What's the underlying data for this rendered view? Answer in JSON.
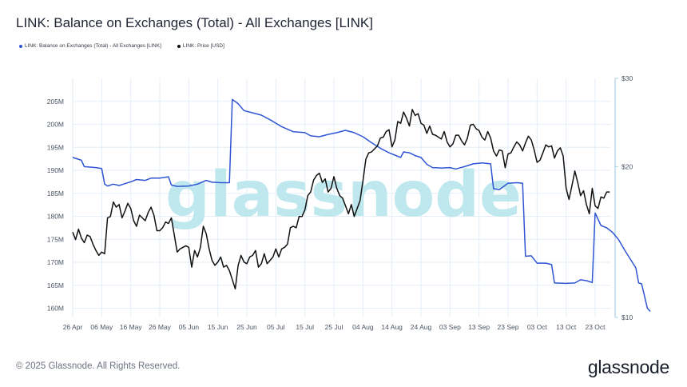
{
  "header": {
    "title": "LINK: Balance on Exchanges (Total) - All Exchanges [LINK]"
  },
  "legend": [
    {
      "label": "LINK: Balance on Exchanges (Total) - All Exchanges [LINK]",
      "color": "#2f55d4"
    },
    {
      "label": "LINK: Price [USD]",
      "color": "#111111"
    }
  ],
  "watermark": "glassnode",
  "footer": {
    "copyright": "© 2025 Glassnode. All Rights Reserved.",
    "logo": "glassnode"
  },
  "colors": {
    "balance": "#2f55d4",
    "price": "#111111",
    "grid": "#e3eef8",
    "right_axis": "#a9cfe8",
    "watermark": "#bfe8ee"
  },
  "chart_data": {
    "type": "line",
    "title": "LINK: Balance on Exchanges (Total) - All Exchanges [LINK]",
    "x_ticks": [
      "26 Apr",
      "06 May",
      "16 May",
      "26 May",
      "05 Jun",
      "15 Jun",
      "25 Jun",
      "05 Jul",
      "15 Jul",
      "25 Jul",
      "04 Aug",
      "14 Aug",
      "24 Aug",
      "03 Sep",
      "13 Sep",
      "23 Sep",
      "03 Oct",
      "13 Oct",
      "23 Oct"
    ],
    "x_tick_days": [
      0,
      10,
      20,
      30,
      40,
      50,
      60,
      70,
      80,
      90,
      100,
      110,
      120,
      130,
      140,
      150,
      160,
      170,
      180
    ],
    "y_left": {
      "ticks": [
        160,
        165,
        170,
        175,
        180,
        185,
        190,
        195,
        200,
        205
      ],
      "tick_labels": [
        "160M",
        "165M",
        "170M",
        "175M",
        "180M",
        "185M",
        "190M",
        "195M",
        "200M",
        "205M"
      ],
      "range": [
        158,
        210
      ]
    },
    "y_right": {
      "scale": "log",
      "ticks": [
        10,
        20,
        30
      ],
      "tick_labels": [
        "$10",
        "$20",
        "$30"
      ],
      "range": [
        10,
        30
      ]
    },
    "grid": true,
    "legend_position": "top-left",
    "series": [
      {
        "name": "LINK: Balance on Exchanges (Total) - All Exchanges [LINK]",
        "axis": "left",
        "points": [
          [
            0,
            192.8
          ],
          [
            3,
            192.2
          ],
          [
            4,
            190.8
          ],
          [
            8,
            190.6
          ],
          [
            10,
            190.4
          ],
          [
            11,
            187
          ],
          [
            12,
            186.6
          ],
          [
            14,
            187
          ],
          [
            16,
            186.7
          ],
          [
            18,
            187.1
          ],
          [
            20,
            187.5
          ],
          [
            22,
            188
          ],
          [
            25,
            187.8
          ],
          [
            27,
            188.3
          ],
          [
            30,
            188.3
          ],
          [
            33,
            188.6
          ],
          [
            34,
            186.8
          ],
          [
            36,
            186.5
          ],
          [
            40,
            186.6
          ],
          [
            43,
            187
          ],
          [
            46,
            187.8
          ],
          [
            48,
            187.4
          ],
          [
            51,
            187.3
          ],
          [
            54,
            187.3
          ],
          [
            55,
            205.4
          ],
          [
            57,
            204.5
          ],
          [
            59,
            203
          ],
          [
            62,
            202.5
          ],
          [
            65,
            202
          ],
          [
            68,
            201
          ],
          [
            72,
            199.5
          ],
          [
            76,
            198.4
          ],
          [
            80,
            198.2
          ],
          [
            82,
            197.5
          ],
          [
            85,
            197.3
          ],
          [
            88,
            197.8
          ],
          [
            91,
            198.2
          ],
          [
            94,
            198.7
          ],
          [
            97,
            198.2
          ],
          [
            100,
            197.3
          ],
          [
            103,
            196
          ],
          [
            106,
            194.8
          ],
          [
            109,
            193.8
          ],
          [
            111,
            193.3
          ],
          [
            113,
            192.8
          ],
          [
            114,
            194
          ],
          [
            116,
            193.8
          ],
          [
            118,
            193.2
          ],
          [
            120,
            192.8
          ],
          [
            122,
            191.3
          ],
          [
            124,
            190.6
          ],
          [
            127,
            190.5
          ],
          [
            130,
            190.6
          ],
          [
            132,
            190.3
          ],
          [
            135,
            190.8
          ],
          [
            138,
            191.4
          ],
          [
            141,
            191.6
          ],
          [
            144,
            191.4
          ],
          [
            145,
            186
          ],
          [
            147,
            185.8
          ],
          [
            150,
            187.2
          ],
          [
            153,
            187.3
          ],
          [
            155,
            187.2
          ],
          [
            156,
            171.3
          ],
          [
            158,
            171.4
          ],
          [
            160,
            169.8
          ],
          [
            163,
            169.8
          ],
          [
            165,
            169.5
          ],
          [
            166,
            165.5
          ],
          [
            170,
            165.4
          ],
          [
            173,
            165.5
          ],
          [
            175,
            166.2
          ],
          [
            177,
            166
          ],
          [
            179,
            165.6
          ],
          [
            180,
            180.7
          ],
          [
            182,
            178
          ],
          [
            184,
            177.5
          ],
          [
            186,
            176.5
          ],
          [
            188,
            175
          ],
          [
            190,
            172.8
          ],
          [
            192,
            170.8
          ],
          [
            194,
            168.8
          ],
          [
            195,
            165.5
          ],
          [
            196,
            165.3
          ],
          [
            198,
            160
          ],
          [
            199,
            159.3
          ]
        ]
      },
      {
        "name": "LINK: Price [USD]",
        "axis": "right",
        "points": [
          [
            0,
            14.8
          ],
          [
            1,
            14.3
          ],
          [
            2,
            15
          ],
          [
            3,
            14.4
          ],
          [
            4,
            14.1
          ],
          [
            5,
            14.6
          ],
          [
            6,
            14.5
          ],
          [
            7,
            14
          ],
          [
            8,
            13.6
          ],
          [
            9,
            13.3
          ],
          [
            10,
            13.5
          ],
          [
            11,
            13.4
          ],
          [
            12,
            15.8
          ],
          [
            13,
            15.9
          ],
          [
            14,
            17
          ],
          [
            15,
            16.6
          ],
          [
            16,
            16.8
          ],
          [
            17,
            15.8
          ],
          [
            18,
            16.3
          ],
          [
            19,
            16.9
          ],
          [
            20,
            16.5
          ],
          [
            21,
            15.6
          ],
          [
            22,
            15.2
          ],
          [
            23,
            16
          ],
          [
            24,
            15.8
          ],
          [
            25,
            15.6
          ],
          [
            26,
            16.2
          ],
          [
            27,
            16.6
          ],
          [
            28,
            16
          ],
          [
            29,
            14.9
          ],
          [
            30,
            14.9
          ],
          [
            31,
            15.1
          ],
          [
            32,
            15.5
          ],
          [
            33,
            15.4
          ],
          [
            34,
            15.8
          ],
          [
            35,
            14.6
          ],
          [
            36,
            13.5
          ],
          [
            37,
            13.7
          ],
          [
            38,
            13.8
          ],
          [
            39,
            13.9
          ],
          [
            40,
            13.8
          ],
          [
            41,
            12.6
          ],
          [
            42,
            13.6
          ],
          [
            43,
            13.2
          ],
          [
            44,
            13.8
          ],
          [
            45,
            15.2
          ],
          [
            46,
            14.7
          ],
          [
            47,
            13.7
          ],
          [
            48,
            13
          ],
          [
            49,
            12.7
          ],
          [
            50,
            12.9
          ],
          [
            51,
            13.2
          ],
          [
            52,
            12.6
          ],
          [
            53,
            12.7
          ],
          [
            54,
            12.4
          ],
          [
            55,
            11.9
          ],
          [
            56,
            11.4
          ],
          [
            57,
            12.7
          ],
          [
            58,
            13.3
          ],
          [
            59,
            12.9
          ],
          [
            60,
            12.8
          ],
          [
            61,
            13.2
          ],
          [
            62,
            13.3
          ],
          [
            63,
            13.6
          ],
          [
            64,
            12.6
          ],
          [
            65,
            12.8
          ],
          [
            66,
            13.4
          ],
          [
            67,
            12.8
          ],
          [
            68,
            13
          ],
          [
            69,
            13.2
          ],
          [
            70,
            13.7
          ],
          [
            71,
            13.2
          ],
          [
            72,
            13.7
          ],
          [
            73,
            13.8
          ],
          [
            74,
            14
          ],
          [
            75,
            15.1
          ],
          [
            76,
            15.2
          ],
          [
            77,
            15.1
          ],
          [
            78,
            15.9
          ],
          [
            79,
            15.9
          ],
          [
            80,
            16.4
          ],
          [
            81,
            17.5
          ],
          [
            82,
            17.8
          ],
          [
            83,
            18.8
          ],
          [
            84,
            19.2
          ],
          [
            85,
            19.4
          ],
          [
            86,
            18.6
          ],
          [
            87,
            18.9
          ],
          [
            88,
            17.8
          ],
          [
            89,
            18.1
          ],
          [
            90,
            19.1
          ],
          [
            91,
            18.1
          ],
          [
            92,
            17.5
          ],
          [
            93,
            17.3
          ],
          [
            94,
            16.7
          ],
          [
            95,
            16.1
          ],
          [
            96,
            16.8
          ],
          [
            97,
            15.9
          ],
          [
            98,
            16.5
          ],
          [
            99,
            17.1
          ],
          [
            100,
            18.7
          ],
          [
            101,
            20.7
          ],
          [
            102,
            21.3
          ],
          [
            103,
            21.4
          ],
          [
            104,
            21.7
          ],
          [
            105,
            22
          ],
          [
            106,
            22.8
          ],
          [
            107,
            22.9
          ],
          [
            108,
            23.5
          ],
          [
            109,
            23.7
          ],
          [
            110,
            21.9
          ],
          [
            111,
            22.6
          ],
          [
            112,
            24.6
          ],
          [
            113,
            24.4
          ],
          [
            114,
            25.7
          ],
          [
            115,
            25
          ],
          [
            116,
            24.1
          ],
          [
            117,
            26
          ],
          [
            118,
            25.3
          ],
          [
            119,
            25.5
          ],
          [
            120,
            24.4
          ],
          [
            121,
            24.2
          ],
          [
            122,
            23.3
          ],
          [
            123,
            24.1
          ],
          [
            124,
            23.2
          ],
          [
            125,
            23.1
          ],
          [
            126,
            22.9
          ],
          [
            127,
            22.7
          ],
          [
            128,
            23.5
          ],
          [
            129,
            22.4
          ],
          [
            130,
            21.9
          ],
          [
            131,
            22.2
          ],
          [
            132,
            23.1
          ],
          [
            133,
            23.1
          ],
          [
            134,
            22.5
          ],
          [
            135,
            22.1
          ],
          [
            136,
            22.8
          ],
          [
            137,
            24.2
          ],
          [
            138,
            24.3
          ],
          [
            139,
            23.8
          ],
          [
            140,
            23.6
          ],
          [
            141,
            22.9
          ],
          [
            142,
            22.6
          ],
          [
            143,
            23.5
          ],
          [
            144,
            22.8
          ],
          [
            145,
            21.5
          ],
          [
            146,
            21
          ],
          [
            147,
            21.6
          ],
          [
            148,
            21.5
          ],
          [
            149,
            19.9
          ],
          [
            150,
            21.2
          ],
          [
            151,
            21.3
          ],
          [
            152,
            21.9
          ],
          [
            153,
            22.4
          ],
          [
            154,
            22.1
          ],
          [
            155,
            21.5
          ],
          [
            156,
            22.3
          ],
          [
            157,
            23
          ],
          [
            158,
            22.6
          ],
          [
            159,
            21.6
          ],
          [
            160,
            20.4
          ],
          [
            161,
            20.6
          ],
          [
            162,
            21.3
          ],
          [
            163,
            22.1
          ],
          [
            164,
            21.9
          ],
          [
            165,
            22
          ],
          [
            166,
            20.8
          ],
          [
            167,
            21.5
          ],
          [
            168,
            21.8
          ],
          [
            169,
            21
          ],
          [
            170,
            18.1
          ],
          [
            171,
            17.2
          ],
          [
            172,
            18.3
          ],
          [
            173,
            19.6
          ],
          [
            174,
            18.6
          ],
          [
            175,
            17.5
          ],
          [
            176,
            17.9
          ],
          [
            177,
            16.8
          ],
          [
            178,
            16.1
          ],
          [
            179,
            18.1
          ],
          [
            180,
            16.7
          ],
          [
            181,
            16.5
          ],
          [
            182,
            17.4
          ],
          [
            183,
            17.3
          ],
          [
            184,
            17.8
          ],
          [
            185,
            17.8
          ]
        ]
      }
    ]
  }
}
